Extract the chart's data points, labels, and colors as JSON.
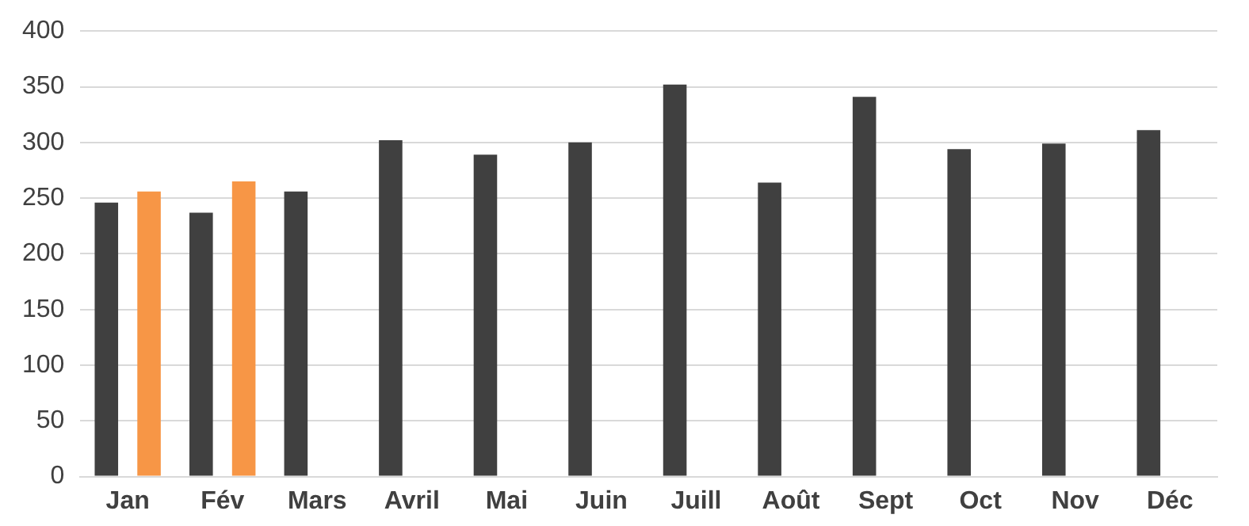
{
  "chart_data": {
    "type": "bar",
    "categories": [
      "Jan",
      "Fév",
      "Mars",
      "Avril",
      "Mai",
      "Juin",
      "Juill",
      "Août",
      "Sept",
      "Oct",
      "Nov",
      "Déc"
    ],
    "series": [
      {
        "color": "#404040",
        "values": [
          246,
          237,
          256,
          302,
          289,
          300,
          352,
          264,
          341,
          294,
          299,
          311
        ]
      },
      {
        "color": "#f79646",
        "values": [
          256,
          265,
          null,
          null,
          null,
          null,
          null,
          null,
          null,
          null,
          null,
          null
        ]
      }
    ],
    "ylim": [
      0,
      400
    ],
    "yticks": [
      0,
      50,
      100,
      150,
      200,
      250,
      300,
      350,
      400
    ],
    "grid": "y",
    "legend": false
  }
}
